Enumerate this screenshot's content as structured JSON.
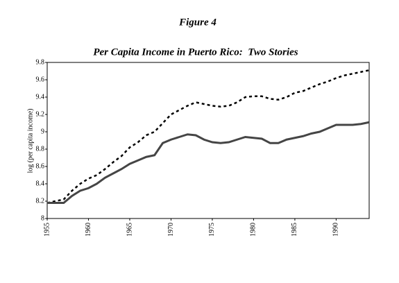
{
  "chart_data": {
    "type": "line",
    "heading": "Figure 4",
    "title": "Per Capita Income in Puerto Rico:  Two Stories",
    "ylabel": "log (per capita income)",
    "x": [
      1955,
      1956,
      1957,
      1958,
      1959,
      1960,
      1961,
      1962,
      1963,
      1964,
      1965,
      1966,
      1967,
      1968,
      1969,
      1970,
      1971,
      1972,
      1973,
      1974,
      1975,
      1976,
      1977,
      1978,
      1979,
      1980,
      1981,
      1982,
      1983,
      1984,
      1985,
      1986,
      1987,
      1988,
      1989,
      1990,
      1991,
      1992,
      1993,
      1994
    ],
    "series": [
      {
        "color": "#000000",
        "style": "dashed",
        "values": [
          8.18,
          8.2,
          8.22,
          8.32,
          8.4,
          8.46,
          8.5,
          8.57,
          8.65,
          8.72,
          8.82,
          8.88,
          8.96,
          9.0,
          9.1,
          9.2,
          9.25,
          9.3,
          9.34,
          9.32,
          9.3,
          9.29,
          9.3,
          9.34,
          9.4,
          9.41,
          9.41,
          9.38,
          9.37,
          9.4,
          9.45,
          9.47,
          9.51,
          9.55,
          9.58,
          9.62,
          9.65,
          9.67,
          9.69,
          9.71
        ]
      },
      {
        "color": "#454545",
        "style": "solid",
        "values": [
          8.18,
          8.18,
          8.18,
          8.26,
          8.32,
          8.35,
          8.4,
          8.47,
          8.52,
          8.57,
          8.63,
          8.67,
          8.71,
          8.73,
          8.87,
          8.91,
          8.94,
          8.97,
          8.96,
          8.91,
          8.88,
          8.87,
          8.88,
          8.91,
          8.94,
          8.93,
          8.92,
          8.87,
          8.87,
          8.91,
          8.93,
          8.95,
          8.98,
          9.0,
          9.04,
          9.08,
          9.08,
          9.08,
          9.09,
          9.11
        ]
      }
    ],
    "xlim": [
      1955,
      1994
    ],
    "xticks": [
      1955,
      1960,
      1965,
      1970,
      1975,
      1980,
      1985,
      1990
    ],
    "ylim": [
      8,
      9.8
    ],
    "yticks": [
      8,
      8.2,
      8.4,
      8.6,
      8.8,
      9,
      9.2,
      9.4,
      9.6,
      9.8
    ],
    "grid": false
  }
}
